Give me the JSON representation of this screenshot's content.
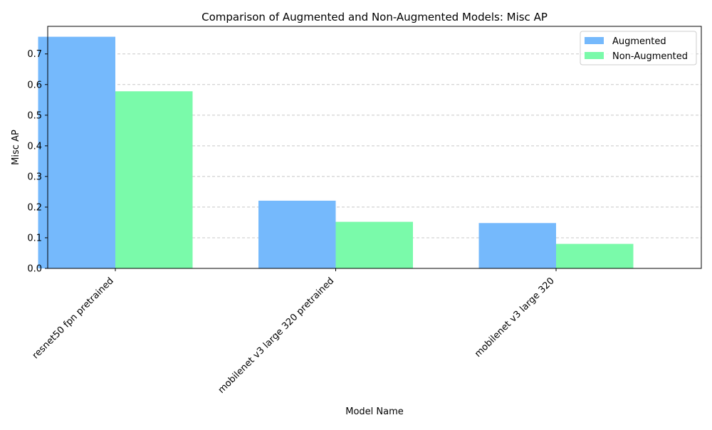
{
  "chart_data": {
    "type": "bar",
    "title": "Comparison of Augmented and Non-Augmented Models: Misc AP",
    "xlabel": "Model Name",
    "ylabel": "Misc AP",
    "categories": [
      "resnet50 fpn pretrained",
      "mobilenet v3 large 320 pretrained",
      "mobilenet v3 large 320"
    ],
    "series": [
      {
        "name": "Augmented",
        "values": [
          0.756,
          0.221,
          0.148
        ],
        "color": "#75b9fc"
      },
      {
        "name": "Non-Augmented",
        "values": [
          0.578,
          0.152,
          0.08
        ],
        "color": "#7afaaa"
      }
    ],
    "ylim": [
      0,
      0.79
    ],
    "yticks": [
      "0.0",
      "0.1",
      "0.2",
      "0.3",
      "0.4",
      "0.5",
      "0.6",
      "0.7"
    ],
    "ytick_values": [
      0,
      0.1,
      0.2,
      0.3,
      0.4,
      0.5,
      0.6,
      0.7
    ],
    "grid": "y-dashed",
    "legend_position": "top-right"
  }
}
